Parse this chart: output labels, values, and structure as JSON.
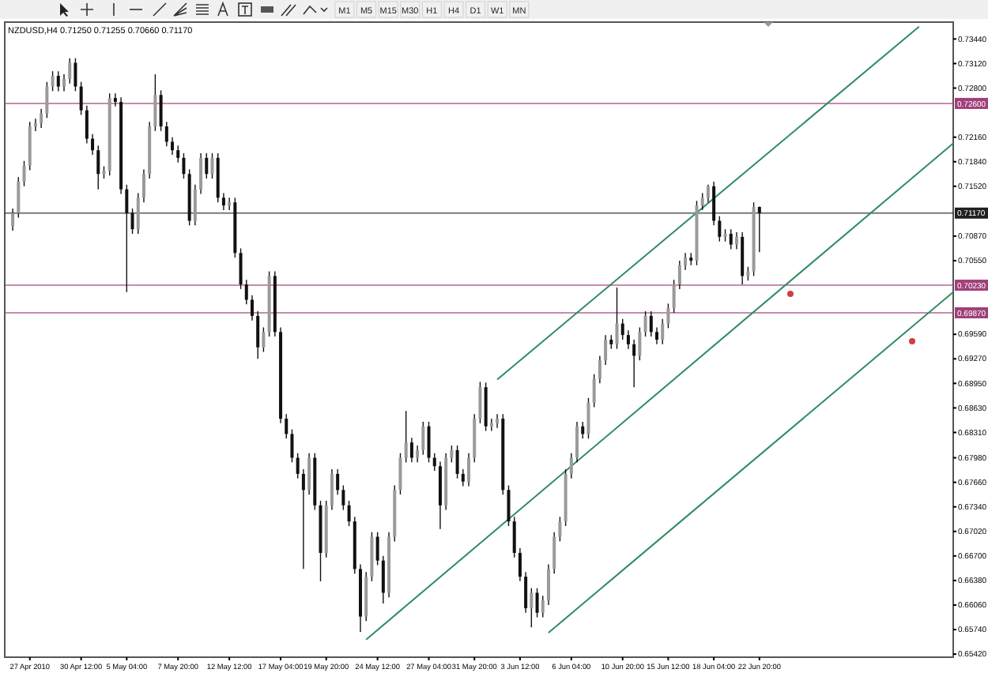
{
  "chart_data": {
    "type": "candlestick",
    "title": "NZDUSD,H4  0.71250 0.71255 0.70660 0.71170",
    "categories": [
      null,
      null,
      null,
      "27 Apr 2010",
      null,
      null,
      null,
      null,
      null,
      null,
      null,
      null,
      "30 Apr 12:00",
      null,
      null,
      null,
      null,
      null,
      null,
      null,
      "5 May 04:00",
      null,
      null,
      null,
      null,
      null,
      null,
      null,
      null,
      "7 May 20:00",
      null,
      null,
      null,
      null,
      null,
      null,
      null,
      null,
      "12 May 12:00",
      null,
      null,
      null,
      null,
      null,
      null,
      null,
      null,
      "17 May 04:00",
      null,
      null,
      null,
      null,
      null,
      null,
      null,
      "19 May 20:00",
      null,
      null,
      null,
      null,
      null,
      null,
      null,
      null,
      "24 May 12:00",
      null,
      null,
      null,
      null,
      null,
      null,
      null,
      null,
      "27 May 04:00",
      null,
      null,
      null,
      null,
      null,
      null,
      null,
      "31 May 20:00",
      null,
      null,
      null,
      null,
      null,
      null,
      null,
      "3 Jun 12:00",
      null,
      null,
      null,
      null,
      null,
      null,
      null,
      null,
      "6 Jun 04:00",
      null,
      null,
      null,
      null,
      null,
      null,
      null,
      null,
      "10 Jun 20:00",
      null,
      null,
      null,
      null,
      null,
      null,
      null,
      "15 Jun 12:00",
      null,
      null,
      null,
      null,
      null,
      null,
      null,
      "18 Jun 04:00",
      null,
      null,
      null,
      null,
      null,
      null,
      null,
      "22 Jun 20:00",
      null,
      null,
      null,
      null,
      null,
      null,
      null,
      null,
      null,
      null,
      null,
      null,
      null,
      null,
      null,
      null,
      null,
      null,
      null,
      null,
      null,
      null,
      null,
      null,
      null,
      null,
      null,
      null,
      null,
      null,
      null,
      null,
      null,
      null
    ],
    "ohlc": [
      [
        0.71,
        0.7123,
        0.7094,
        0.7117
      ],
      [
        0.7117,
        0.7164,
        0.7111,
        0.7158
      ],
      [
        0.7158,
        0.7185,
        0.7152,
        0.7179
      ],
      [
        0.7179,
        0.7236,
        0.7173,
        0.723
      ],
      [
        0.723,
        0.724,
        0.7224,
        0.7234
      ],
      [
        0.7234,
        0.7253,
        0.7228,
        0.7247
      ],
      [
        0.7247,
        0.7288,
        0.7241,
        0.7282
      ],
      [
        0.7282,
        0.7302,
        0.7276,
        0.7296
      ],
      [
        0.7296,
        0.7302,
        0.7276,
        0.7282
      ],
      [
        0.7282,
        0.7298,
        0.7276,
        0.7292
      ],
      [
        0.7292,
        0.7319,
        0.7286,
        0.7313
      ],
      [
        0.7313,
        0.7319,
        0.7276,
        0.7282
      ],
      [
        0.7282,
        0.7288,
        0.7245,
        0.7251
      ],
      [
        0.7251,
        0.7257,
        0.7208,
        0.7214
      ],
      [
        0.7214,
        0.722,
        0.7193,
        0.7199
      ],
      [
        0.7199,
        0.7205,
        0.7148,
        0.7168
      ],
      [
        0.7168,
        0.7178,
        0.7162,
        0.7172
      ],
      [
        0.7172,
        0.7273,
        0.7166,
        0.7267
      ],
      [
        0.7267,
        0.7273,
        0.7256,
        0.7262
      ],
      [
        0.7262,
        0.7268,
        0.7142,
        0.7148
      ],
      [
        0.7148,
        0.7154,
        0.7014,
        0.7117
      ],
      [
        0.7117,
        0.7123,
        0.709,
        0.7096
      ],
      [
        0.7096,
        0.7143,
        0.709,
        0.7137
      ],
      [
        0.7137,
        0.7174,
        0.7131,
        0.7168
      ],
      [
        0.7168,
        0.7236,
        0.7162,
        0.723
      ],
      [
        0.723,
        0.7298,
        0.7224,
        0.7271
      ],
      [
        0.7271,
        0.7277,
        0.7224,
        0.723
      ],
      [
        0.723,
        0.7236,
        0.7204,
        0.721
      ],
      [
        0.721,
        0.7216,
        0.7193,
        0.7199
      ],
      [
        0.7199,
        0.7205,
        0.7183,
        0.7189
      ],
      [
        0.7189,
        0.7195,
        0.7162,
        0.7168
      ],
      [
        0.7168,
        0.7174,
        0.7101,
        0.7107
      ],
      [
        0.7107,
        0.7154,
        0.7101,
        0.7148
      ],
      [
        0.7148,
        0.7195,
        0.7142,
        0.7189
      ],
      [
        0.7189,
        0.7195,
        0.7162,
        0.7168
      ],
      [
        0.7168,
        0.7195,
        0.7162,
        0.7189
      ],
      [
        0.7189,
        0.7195,
        0.7131,
        0.7137
      ],
      [
        0.7137,
        0.7143,
        0.7121,
        0.7127
      ],
      [
        0.7127,
        0.7137,
        0.7121,
        0.7131
      ],
      [
        0.7131,
        0.7137,
        0.7059,
        0.7065
      ],
      [
        0.7065,
        0.7071,
        0.7018,
        0.7024
      ],
      [
        0.7024,
        0.703,
        0.6998,
        0.7004
      ],
      [
        0.7004,
        0.701,
        0.6977,
        0.6983
      ],
      [
        0.6983,
        0.6989,
        0.6927,
        0.6942
      ],
      [
        0.6942,
        0.6968,
        0.6936,
        0.6962
      ],
      [
        0.6962,
        0.7041,
        0.6956,
        0.7035
      ],
      [
        0.7035,
        0.7041,
        0.6956,
        0.6962
      ],
      [
        0.6962,
        0.6968,
        0.6843,
        0.6849
      ],
      [
        0.6849,
        0.6855,
        0.6823,
        0.6829
      ],
      [
        0.6829,
        0.6835,
        0.6792,
        0.6798
      ],
      [
        0.6798,
        0.6804,
        0.6771,
        0.6777
      ],
      [
        0.6777,
        0.6783,
        0.6653,
        0.6756
      ],
      [
        0.6756,
        0.6804,
        0.675,
        0.6798
      ],
      [
        0.6798,
        0.6804,
        0.673,
        0.6736
      ],
      [
        0.6736,
        0.6742,
        0.6637,
        0.6674
      ],
      [
        0.6674,
        0.6742,
        0.6668,
        0.6736
      ],
      [
        0.6736,
        0.6783,
        0.673,
        0.6777
      ],
      [
        0.6777,
        0.6783,
        0.675,
        0.6756
      ],
      [
        0.6756,
        0.6762,
        0.673,
        0.6736
      ],
      [
        0.6736,
        0.6742,
        0.6709,
        0.6715
      ],
      [
        0.6715,
        0.6721,
        0.6647,
        0.6653
      ],
      [
        0.6653,
        0.6659,
        0.6571,
        0.6591
      ],
      [
        0.6591,
        0.6649,
        0.6585,
        0.6643
      ],
      [
        0.6643,
        0.6701,
        0.6637,
        0.6695
      ],
      [
        0.6695,
        0.6701,
        0.6658,
        0.6664
      ],
      [
        0.6664,
        0.667,
        0.6608,
        0.6622
      ],
      [
        0.6622,
        0.6701,
        0.6616,
        0.6695
      ],
      [
        0.6695,
        0.6762,
        0.6689,
        0.6756
      ],
      [
        0.6756,
        0.6804,
        0.675,
        0.6798
      ],
      [
        0.6798,
        0.6859,
        0.6792,
        0.6818
      ],
      [
        0.6818,
        0.6824,
        0.6792,
        0.6798
      ],
      [
        0.6798,
        0.6814,
        0.6792,
        0.6808
      ],
      [
        0.6808,
        0.6845,
        0.6802,
        0.6839
      ],
      [
        0.6839,
        0.6845,
        0.6792,
        0.6798
      ],
      [
        0.6798,
        0.6804,
        0.6781,
        0.6787
      ],
      [
        0.6787,
        0.6793,
        0.6705,
        0.6736
      ],
      [
        0.6736,
        0.6804,
        0.673,
        0.6798
      ],
      [
        0.6798,
        0.6814,
        0.6792,
        0.6808
      ],
      [
        0.6808,
        0.6814,
        0.6771,
        0.6777
      ],
      [
        0.6777,
        0.6783,
        0.6761,
        0.6767
      ],
      [
        0.6767,
        0.6804,
        0.6761,
        0.6798
      ],
      [
        0.6798,
        0.6855,
        0.6792,
        0.6849
      ],
      [
        0.6849,
        0.6897,
        0.6843,
        0.689
      ],
      [
        0.689,
        0.6896,
        0.6833,
        0.6839
      ],
      [
        0.6839,
        0.6849,
        0.6833,
        0.6843
      ],
      [
        0.6843,
        0.6855,
        0.6837,
        0.6849
      ],
      [
        0.6849,
        0.6855,
        0.675,
        0.6756
      ],
      [
        0.6756,
        0.6762,
        0.6709,
        0.6715
      ],
      [
        0.6715,
        0.6721,
        0.6668,
        0.6674
      ],
      [
        0.6674,
        0.668,
        0.6637,
        0.6643
      ],
      [
        0.6643,
        0.6649,
        0.6596,
        0.6602
      ],
      [
        0.6602,
        0.6628,
        0.6577,
        0.6622
      ],
      [
        0.6622,
        0.6628,
        0.659,
        0.6596
      ],
      [
        0.6596,
        0.6618,
        0.659,
        0.6612
      ],
      [
        0.6612,
        0.6659,
        0.6606,
        0.6653
      ],
      [
        0.6653,
        0.6701,
        0.6647,
        0.6695
      ],
      [
        0.6695,
        0.6721,
        0.6689,
        0.6715
      ],
      [
        0.6715,
        0.6783,
        0.6709,
        0.6777
      ],
      [
        0.6777,
        0.6804,
        0.6771,
        0.6798
      ],
      [
        0.6798,
        0.6845,
        0.6792,
        0.6839
      ],
      [
        0.6839,
        0.6845,
        0.6823,
        0.6829
      ],
      [
        0.6829,
        0.6876,
        0.6823,
        0.687
      ],
      [
        0.687,
        0.6907,
        0.6864,
        0.6901
      ],
      [
        0.6901,
        0.6931,
        0.6895,
        0.6925
      ],
      [
        0.6925,
        0.6958,
        0.6919,
        0.6952
      ],
      [
        0.6952,
        0.6958,
        0.694,
        0.6946
      ],
      [
        0.6946,
        0.702,
        0.694,
        0.6973
      ],
      [
        0.6973,
        0.6979,
        0.6952,
        0.6958
      ],
      [
        0.6958,
        0.6964,
        0.694,
        0.6946
      ],
      [
        0.6946,
        0.6952,
        0.689,
        0.6931
      ],
      [
        0.6931,
        0.6968,
        0.6925,
        0.6962
      ],
      [
        0.6962,
        0.6989,
        0.6956,
        0.6983
      ],
      [
        0.6983,
        0.6989,
        0.6956,
        0.6962
      ],
      [
        0.6962,
        0.6968,
        0.6946,
        0.6952
      ],
      [
        0.6952,
        0.6979,
        0.6946,
        0.6973
      ],
      [
        0.6973,
        0.6999,
        0.6967,
        0.6993
      ],
      [
        0.6993,
        0.703,
        0.6987,
        0.7024
      ],
      [
        0.7024,
        0.7055,
        0.7018,
        0.7049
      ],
      [
        0.7049,
        0.7065,
        0.7043,
        0.7059
      ],
      [
        0.7059,
        0.7065,
        0.7049,
        0.7055
      ],
      [
        0.7055,
        0.7133,
        0.7049,
        0.7127
      ],
      [
        0.7127,
        0.7143,
        0.7121,
        0.7137
      ],
      [
        0.7137,
        0.7154,
        0.7131,
        0.7152
      ],
      [
        0.7152,
        0.7158,
        0.7101,
        0.7107
      ],
      [
        0.7107,
        0.7113,
        0.708,
        0.7086
      ],
      [
        0.7086,
        0.7096,
        0.708,
        0.709
      ],
      [
        0.709,
        0.7096,
        0.707,
        0.7076
      ],
      [
        0.7076,
        0.7092,
        0.707,
        0.7086
      ],
      [
        0.7086,
        0.7092,
        0.7024,
        0.7035
      ],
      [
        0.7035,
        0.7047,
        0.7029,
        0.7041
      ],
      [
        0.7041,
        0.7131,
        0.7035,
        0.7125
      ],
      [
        0.7125,
        0.71255,
        0.7066,
        0.7117
      ],
      null,
      null,
      null,
      null,
      null,
      null,
      null,
      null,
      null,
      null,
      null,
      null,
      null,
      null,
      null,
      null,
      null,
      null,
      null,
      null,
      null,
      null,
      null,
      null,
      null,
      null,
      null,
      null,
      null,
      null,
      null,
      null,
      null,
      null
    ],
    "series": [
      {
        "type": "line",
        "color": "#2e8b62",
        "values": [
          null,
          null,
          null,
          null,
          null,
          null,
          null,
          null,
          null,
          null,
          null,
          null,
          null,
          null,
          null,
          null,
          null,
          null,
          null,
          null,
          null,
          null,
          null,
          null,
          null,
          null,
          null,
          null,
          null,
          null,
          null,
          null,
          null,
          null,
          null,
          null,
          null,
          null,
          null,
          null,
          null,
          null,
          null,
          null,
          null,
          null,
          null,
          null,
          null,
          null,
          null,
          null,
          null,
          null,
          null,
          null,
          null,
          null,
          null,
          null,
          null,
          null,
          null,
          null,
          null,
          null,
          null,
          null,
          null,
          null,
          null,
          null,
          null,
          null,
          null,
          null,
          null,
          null,
          null,
          null,
          null,
          null,
          null,
          null,
          null,
          0.69,
          null,
          null,
          null,
          null,
          null,
          null,
          null,
          null,
          null,
          null,
          null,
          null,
          null,
          null,
          null,
          null,
          null,
          null,
          null,
          null,
          null,
          null,
          null,
          null,
          null,
          null,
          null,
          null,
          null,
          null,
          null,
          null,
          null,
          null,
          null,
          null,
          null,
          null,
          null,
          null,
          null,
          null,
          null,
          null,
          null,
          null,
          null,
          null,
          null,
          null,
          null,
          null,
          null,
          null,
          null,
          null,
          null,
          null,
          null,
          null,
          null,
          null,
          null,
          null,
          null,
          null,
          null,
          null,
          null,
          null,
          null,
          null,
          null,
          0.736,
          null,
          null,
          null,
          null,
          null,
          null
        ]
      },
      {
        "type": "line",
        "color": "#2e8b62",
        "values": [
          null,
          null,
          null,
          null,
          null,
          null,
          null,
          null,
          null,
          null,
          null,
          null,
          null,
          null,
          null,
          null,
          null,
          null,
          null,
          null,
          null,
          null,
          null,
          null,
          null,
          null,
          null,
          null,
          null,
          null,
          null,
          null,
          null,
          null,
          null,
          null,
          null,
          null,
          null,
          null,
          null,
          null,
          null,
          null,
          null,
          null,
          null,
          null,
          null,
          null,
          null,
          null,
          null,
          null,
          null,
          null,
          null,
          null,
          null,
          null,
          null,
          null,
          0.6561,
          null,
          null,
          null,
          null,
          null,
          null,
          null,
          null,
          null,
          null,
          null,
          null,
          null,
          null,
          null,
          null,
          null,
          null,
          null,
          null,
          null,
          null,
          null,
          null,
          null,
          null,
          null,
          null,
          null,
          null,
          null,
          null,
          null,
          null,
          null,
          null,
          null,
          null,
          null,
          null,
          null,
          null,
          null,
          null,
          null,
          null,
          null,
          null,
          null,
          null,
          null,
          null,
          null,
          null,
          null,
          null,
          null,
          null,
          null,
          null,
          null,
          null,
          null,
          null,
          null,
          null,
          null,
          null,
          null,
          null,
          null,
          null,
          null,
          null,
          null,
          null,
          null,
          null,
          null,
          null,
          null,
          null,
          null,
          null,
          null,
          null,
          null,
          null,
          null,
          null,
          null,
          null,
          null,
          null,
          null,
          null,
          null,
          null,
          null,
          null,
          null,
          null,
          0.7208
        ]
      },
      {
        "type": "line",
        "color": "#2e8b62",
        "values": [
          null,
          null,
          null,
          null,
          null,
          null,
          null,
          null,
          null,
          null,
          null,
          null,
          null,
          null,
          null,
          null,
          null,
          null,
          null,
          null,
          null,
          null,
          null,
          null,
          null,
          null,
          null,
          null,
          null,
          null,
          null,
          null,
          null,
          null,
          null,
          null,
          null,
          null,
          null,
          null,
          null,
          null,
          null,
          null,
          null,
          null,
          null,
          null,
          null,
          null,
          null,
          null,
          null,
          null,
          null,
          null,
          null,
          null,
          null,
          null,
          null,
          null,
          null,
          null,
          null,
          null,
          null,
          null,
          null,
          null,
          null,
          null,
          null,
          null,
          null,
          null,
          null,
          null,
          null,
          null,
          null,
          null,
          null,
          null,
          null,
          null,
          null,
          null,
          null,
          null,
          null,
          null,
          null,
          null,
          0.657,
          null,
          null,
          null,
          null,
          null,
          null,
          null,
          null,
          null,
          null,
          null,
          null,
          null,
          null,
          null,
          null,
          null,
          null,
          null,
          null,
          null,
          null,
          null,
          null,
          null,
          null,
          null,
          null,
          null,
          null,
          null,
          null,
          null,
          null,
          null,
          null,
          null,
          null,
          null,
          null,
          null,
          null,
          null,
          null,
          null,
          null,
          null,
          null,
          null,
          null,
          null,
          null,
          null,
          null,
          null,
          null,
          null,
          null,
          null,
          null,
          null,
          null,
          null,
          null,
          null,
          null,
          null,
          null,
          null,
          null,
          0.7014
        ]
      }
    ],
    "ylim": [
      0.6538,
      0.7366
    ],
    "yticks": [
      {
        "value": 0.7344,
        "label": "0.73440"
      },
      {
        "value": 0.7312,
        "label": "0.73120"
      },
      {
        "value": 0.728,
        "label": "0.72800"
      },
      {
        "value": 0.7216,
        "label": "0.72160"
      },
      {
        "value": 0.7184,
        "label": "0.71840"
      },
      {
        "value": 0.7152,
        "label": "0.71520"
      },
      {
        "value": 0.7087,
        "label": "0.70870"
      },
      {
        "value": 0.7055,
        "label": "0.70550"
      },
      {
        "value": 0.6959,
        "label": "0.69590"
      },
      {
        "value": 0.6927,
        "label": "0.69270"
      },
      {
        "value": 0.6895,
        "label": "0.68950"
      },
      {
        "value": 0.6863,
        "label": "0.68630"
      },
      {
        "value": 0.6831,
        "label": "0.68310"
      },
      {
        "value": 0.6798,
        "label": "0.67980"
      },
      {
        "value": 0.6766,
        "label": "0.67660"
      },
      {
        "value": 0.6734,
        "label": "0.67340"
      },
      {
        "value": 0.6702,
        "label": "0.67020"
      },
      {
        "value": 0.667,
        "label": "0.66700"
      },
      {
        "value": 0.6638,
        "label": "0.66380"
      },
      {
        "value": 0.6606,
        "label": "0.66060"
      },
      {
        "value": 0.6574,
        "label": "0.65740"
      },
      {
        "value": 0.6542,
        "label": "0.65420"
      }
    ],
    "ref_lines": [
      {
        "axis": "y",
        "value": 0.726,
        "label": "0.72600",
        "color": "#a0407a"
      },
      {
        "axis": "y",
        "value": 0.7117,
        "label": "0.71170",
        "color": "#202020"
      },
      {
        "axis": "y",
        "value": 0.7023,
        "label": "0.70230",
        "color": "#a0407a"
      },
      {
        "axis": "y",
        "value": 0.6987,
        "label": "0.69870",
        "color": "#a0407a"
      }
    ],
    "annotations": [
      "M1",
      "M5",
      "M15",
      "M30",
      "H1",
      "H4",
      "D1",
      "W1",
      "MN"
    ]
  }
}
